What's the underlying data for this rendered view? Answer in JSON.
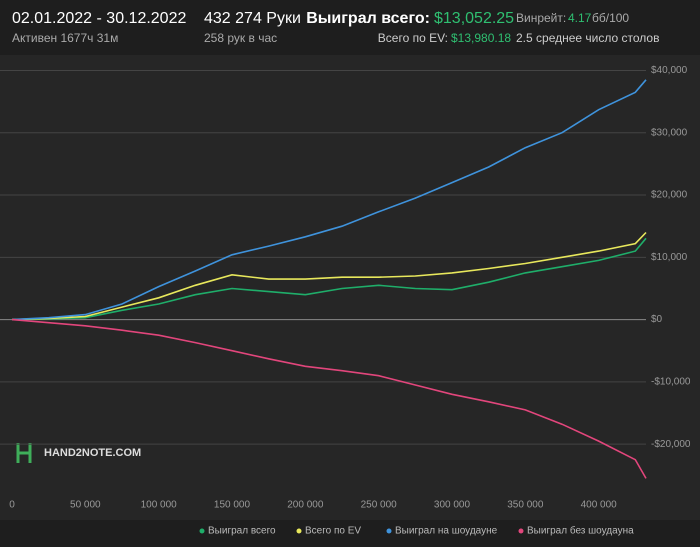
{
  "header": {
    "period": "02.01.2022 - 30.12.2022",
    "active": "Активен 1677ч 31м",
    "hands": "432 274 Руки",
    "hands_per_hour": "258 рук в час",
    "won_label": "Выиграл всего:",
    "won_value": "$13,052.25",
    "ev_label": "Всего по EV:",
    "ev_value": "$13,980.18",
    "winrate_label": "Винрейт:",
    "winrate_value": "4.17",
    "winrate_unit": "бб/100",
    "tables": "2.5 среднее число столов"
  },
  "watermark": "HAND2NOTE.COM",
  "chart_data": {
    "type": "line",
    "x": [
      0,
      25000,
      50000,
      75000,
      100000,
      125000,
      150000,
      175000,
      200000,
      225000,
      250000,
      275000,
      300000,
      325000,
      350000,
      375000,
      400000,
      425000,
      432274
    ],
    "series": [
      {
        "name": "Выиграл всего",
        "color": "#1fae6a",
        "values": [
          0,
          100,
          300,
          1500,
          2500,
          4000,
          5000,
          4500,
          4000,
          5000,
          5500,
          5000,
          4800,
          6000,
          7500,
          8500,
          9500,
          11000,
          13052
        ]
      },
      {
        "name": "Всего по EV",
        "color": "#e8e85c",
        "values": [
          0,
          200,
          500,
          2000,
          3500,
          5500,
          7200,
          6500,
          6500,
          6800,
          6800,
          7000,
          7500,
          8200,
          9000,
          10000,
          11000,
          12200,
          13980
        ]
      },
      {
        "name": "Выиграл на шоудауне",
        "color": "#3f93dc",
        "values": [
          0,
          300,
          800,
          2500,
          5300,
          7800,
          10400,
          11800,
          13300,
          15000,
          17300,
          19500,
          22000,
          24500,
          27600,
          30000,
          33700,
          36500,
          38500
        ]
      },
      {
        "name": "Выиграл без шоудауна",
        "color": "#e2467c",
        "values": [
          0,
          -500,
          -1000,
          -1700,
          -2500,
          -3700,
          -5000,
          -6300,
          -7500,
          -8200,
          -9000,
          -10500,
          -12000,
          -13200,
          -14500,
          -16800,
          -19500,
          -22500,
          -25500
        ]
      }
    ],
    "xlim": [
      0,
      432274
    ],
    "xticks": [
      0,
      {
        "value": 50000,
        "label": "50 000"
      },
      {
        "value": 100000,
        "label": "100 000"
      },
      {
        "value": 150000,
        "label": "150 000"
      },
      {
        "value": 200000,
        "label": "200 000"
      },
      {
        "value": 250000,
        "label": "250 000"
      },
      {
        "value": 300000,
        "label": "300 000"
      },
      {
        "value": 350000,
        "label": "350 000"
      },
      {
        "value": 400000,
        "label": "400 000"
      }
    ],
    "ylim": [
      -28000,
      42000
    ],
    "yticks": [
      {
        "value": -20000,
        "label": "-$20,000"
      },
      {
        "value": -10000,
        "label": "-$10,000"
      },
      {
        "value": 0,
        "label": "$0"
      },
      {
        "value": 10000,
        "label": "$10,000"
      },
      {
        "value": 20000,
        "label": "$20,000"
      },
      {
        "value": 30000,
        "label": "$30,000"
      },
      {
        "value": 40000,
        "label": "$40,000"
      }
    ],
    "grid": true
  }
}
